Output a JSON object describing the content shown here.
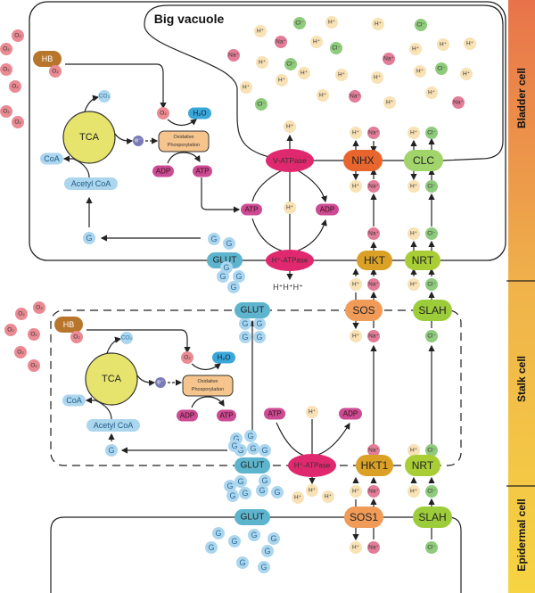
{
  "vacuole_title": "Big vacuole",
  "cells": {
    "bladder": "Bladder cell",
    "stalk": "Stalk cell",
    "epidermal": "Epidermal cell"
  },
  "ions": {
    "H": "H⁺",
    "Na": "Na⁺",
    "Cl": "Cl⁻",
    "O2": "O₂",
    "G": "G",
    "CO2": "CO₂",
    "H2O": "H₂O",
    "e": "e⁻"
  },
  "metabolites": {
    "HB": "HB",
    "TCA": "TCA",
    "CoA": "CoA",
    "AcetylCoA": "Acetyl CoA",
    "ATP": "ATP",
    "ADP": "ADP",
    "oxphos_line1": "Oxidative",
    "oxphos_line2": "Phosporylation",
    "HHH": "H⁺H⁺H⁺"
  },
  "transporters": {
    "GLUT": "GLUT",
    "H_ATPase": "H⁺-ATPase",
    "V_ATPase": "V-ATPase",
    "NHX": "NHX",
    "CLC": "CLC",
    "HKT": "HKT",
    "NRT": "NRT",
    "SOS": "SOS",
    "SLAH": "SLAH",
    "HKT1": "HKT1",
    "SOS1": "SOS1"
  },
  "colors": {
    "H": "#f8e2b6",
    "Na": "#e27d98",
    "Cl": "#8fcb7c",
    "O2": "#ea8a93",
    "G": "#acd6ee",
    "HB": "#b8752c",
    "ATP": "#cc4b94",
    "GLUT": "#5cb4cd",
    "ATPase": "#e0286e",
    "NHX": "#e8662d",
    "CLC": "#a2d46c",
    "HKT": "#daa126",
    "NRT": "#a9cd35",
    "SOS": "#f19b59",
    "SLAH": "#9dcc3b",
    "TCA": "#e6e46c",
    "oxphos": "#f6c48d",
    "H2O": "#3aa7da",
    "e": "#7a7ab8",
    "bar_top": "#e8734a",
    "bar_bottom": "#f6d442"
  }
}
